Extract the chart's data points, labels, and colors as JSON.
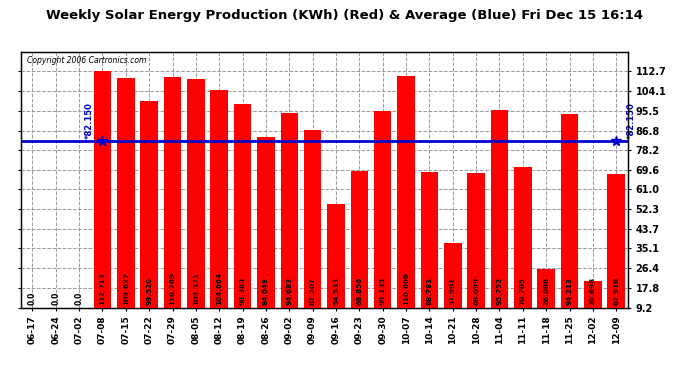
{
  "title": "Weekly Solar Energy Production (KWh) (Red) & Average (Blue) Fri Dec 15 16:14",
  "copyright": "Copyright 2006 Cartronics.com",
  "categories": [
    "06-17",
    "06-24",
    "07-02",
    "07-08",
    "07-15",
    "07-22",
    "07-29",
    "08-05",
    "08-12",
    "08-19",
    "08-26",
    "09-02",
    "09-09",
    "09-16",
    "09-23",
    "09-30",
    "10-07",
    "10-14",
    "10-21",
    "10-28",
    "11-04",
    "11-11",
    "11-18",
    "11-25",
    "12-02",
    "12-09"
  ],
  "values": [
    0.0,
    0.0,
    0.0,
    112.713,
    109.627,
    99.52,
    110.269,
    109.371,
    104.664,
    98.383,
    84.049,
    94.682,
    87.207,
    54.533,
    68.856,
    95.135,
    110.606,
    68.781,
    37.591,
    68.099,
    95.752,
    70.705,
    26.086,
    94.213,
    20.698,
    67.916
  ],
  "average": 82.15,
  "bar_color": "#ff0000",
  "avg_line_color": "#0000cc",
  "background_color": "#ffffff",
  "grid_color": "#999999",
  "title_color": "#000000",
  "ylabel_right": [
    "112.7",
    "104.1",
    "95.5",
    "86.8",
    "78.2",
    "69.6",
    "61.0",
    "52.3",
    "43.7",
    "35.1",
    "26.4",
    "17.8",
    "9.2"
  ],
  "yticks_right": [
    112.7,
    104.1,
    95.5,
    86.8,
    78.2,
    69.6,
    61.0,
    52.3,
    43.7,
    35.1,
    26.4,
    17.8,
    9.2
  ],
  "ymin": 9.2,
  "ymax": 121.0
}
